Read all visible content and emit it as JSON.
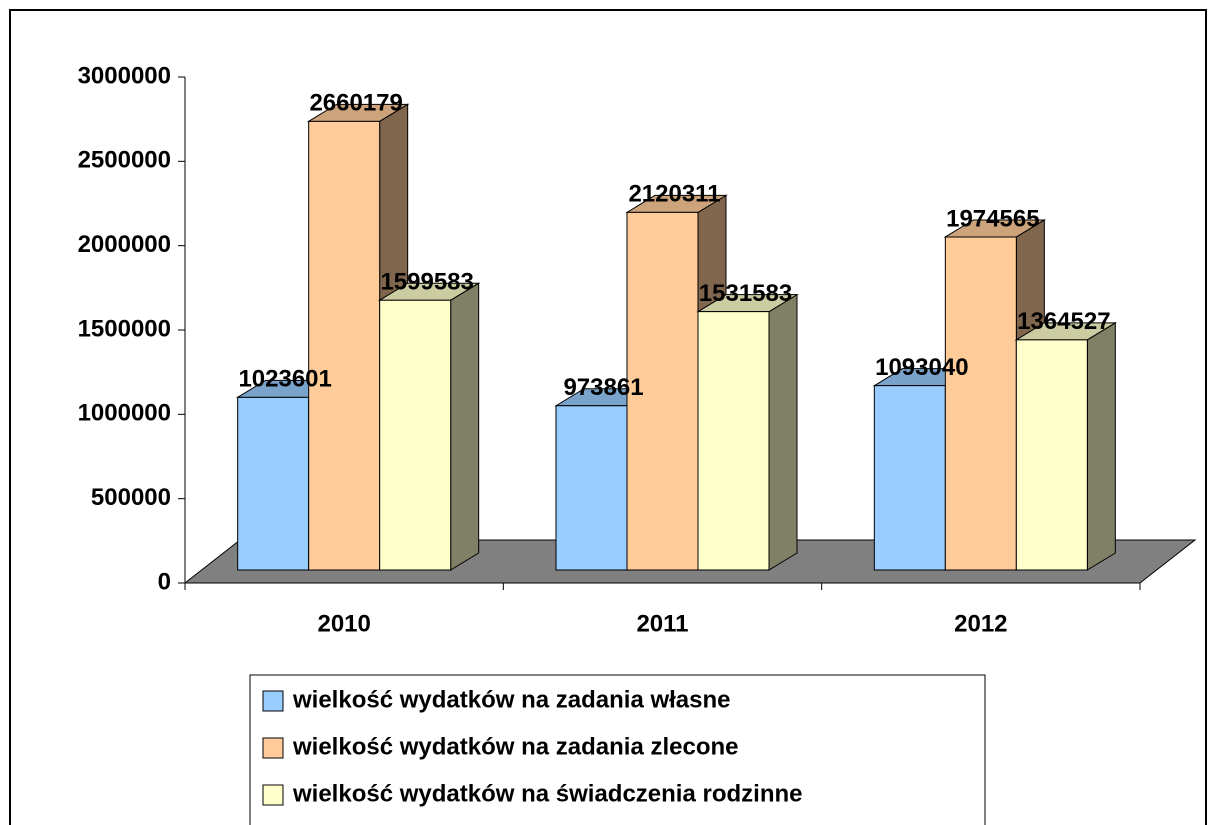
{
  "chart_data": {
    "type": "bar3d",
    "categories": [
      "2010",
      "2011",
      "2012"
    ],
    "series": [
      {
        "name": "wielkość wydatków na zadania własne",
        "color": "#99ccff",
        "values": [
          1023601,
          973861,
          1093040
        ]
      },
      {
        "name": "wielkość wydatków na zadania zlecone",
        "color": "#ffcc99",
        "values": [
          2660179,
          2120311,
          1974565
        ]
      },
      {
        "name": "wielkość wydatków na świadczenia rodzinne",
        "color": "#ffffcc",
        "values": [
          1599583,
          1531583,
          1364527
        ]
      }
    ],
    "ylim": [
      0,
      3000000
    ],
    "yticks": [
      0,
      500000,
      1000000,
      1500000,
      2000000,
      2500000,
      3000000
    ],
    "legend": "bottom"
  }
}
